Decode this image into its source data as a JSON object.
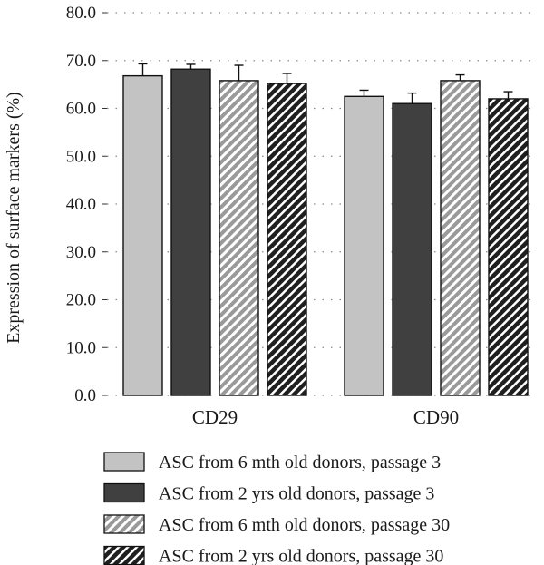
{
  "chart_data": {
    "type": "bar",
    "title": "",
    "xlabel": "",
    "ylabel": "Expression of surface markers (%)",
    "ylim": [
      0,
      80
    ],
    "yticks": [
      "0.0",
      "10.0",
      "20.0",
      "30.0",
      "40.0",
      "50.0",
      "60.0",
      "70.0",
      "80.0"
    ],
    "grid": "horizontal dotted",
    "legend_position": "bottom",
    "categories": [
      "CD29",
      "CD90"
    ],
    "series": [
      {
        "name": "ASC from 6 mth old donors, passage 3",
        "values": [
          66.8,
          62.5
        ],
        "errors": [
          2.5,
          1.3
        ],
        "color": "#c3c3c3",
        "pattern": "solid"
      },
      {
        "name": "ASC from 2 yrs old donors, passage 3",
        "values": [
          68.2,
          61.0
        ],
        "errors": [
          1.0,
          2.2
        ],
        "color": "#404040",
        "pattern": "solid"
      },
      {
        "name": "ASC from 6 mth old donors, passage 30",
        "values": [
          65.8,
          65.8
        ],
        "errors": [
          3.2,
          1.2
        ],
        "color": "#9a9a9a",
        "pattern": "diagonal-light"
      },
      {
        "name": "ASC from 2 yrs old donors, passage 30",
        "values": [
          65.2,
          62.0
        ],
        "errors": [
          2.1,
          1.5
        ],
        "color": "#2a2a2a",
        "pattern": "diagonal-dark"
      }
    ]
  }
}
